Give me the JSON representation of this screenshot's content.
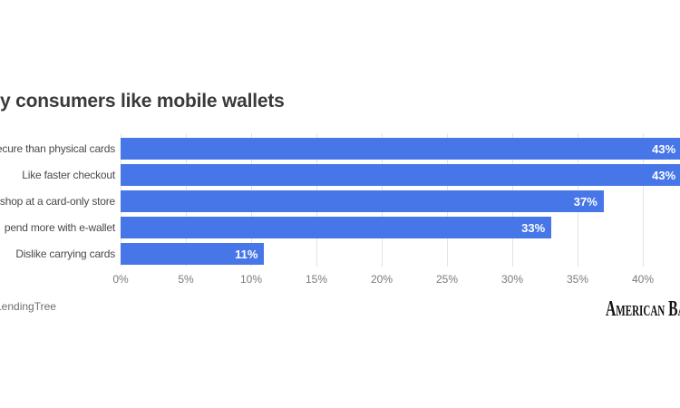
{
  "colors": {
    "bar": "#4676E8",
    "value_label": "#FFFFFF",
    "grid": "#E4E4E4",
    "title": "#3A3A3A",
    "axis_label": "#7A7A7A",
    "category_label": "#4A4A4A",
    "source": "#6E6E6E",
    "logo": "#121212",
    "background": "#FFFFFF"
  },
  "chart_data": {
    "type": "bar",
    "orientation": "horizontal",
    "title": "y consumers like mobile wallets",
    "categories": [
      "ecure than physical cards",
      "Like faster checkout",
      "shop at a card-only store",
      "pend more with e-wallet",
      "Dislike carrying cards"
    ],
    "values": [
      43,
      43,
      37,
      33,
      11
    ],
    "value_labels": [
      "43%",
      "43%",
      "37%",
      "33%",
      "11%"
    ],
    "x_tick_labels": [
      "0%",
      "5%",
      "10%",
      "15%",
      "20%",
      "25%",
      "30%",
      "35%",
      "40%"
    ],
    "x_tick_values": [
      0,
      5,
      10,
      15,
      20,
      25,
      30,
      35,
      40
    ],
    "xlabel": "",
    "ylabel": "",
    "xlim": [
      0,
      43
    ],
    "grid": true,
    "legend": "none",
    "source": "LendingTree",
    "branding": "American Banker"
  }
}
